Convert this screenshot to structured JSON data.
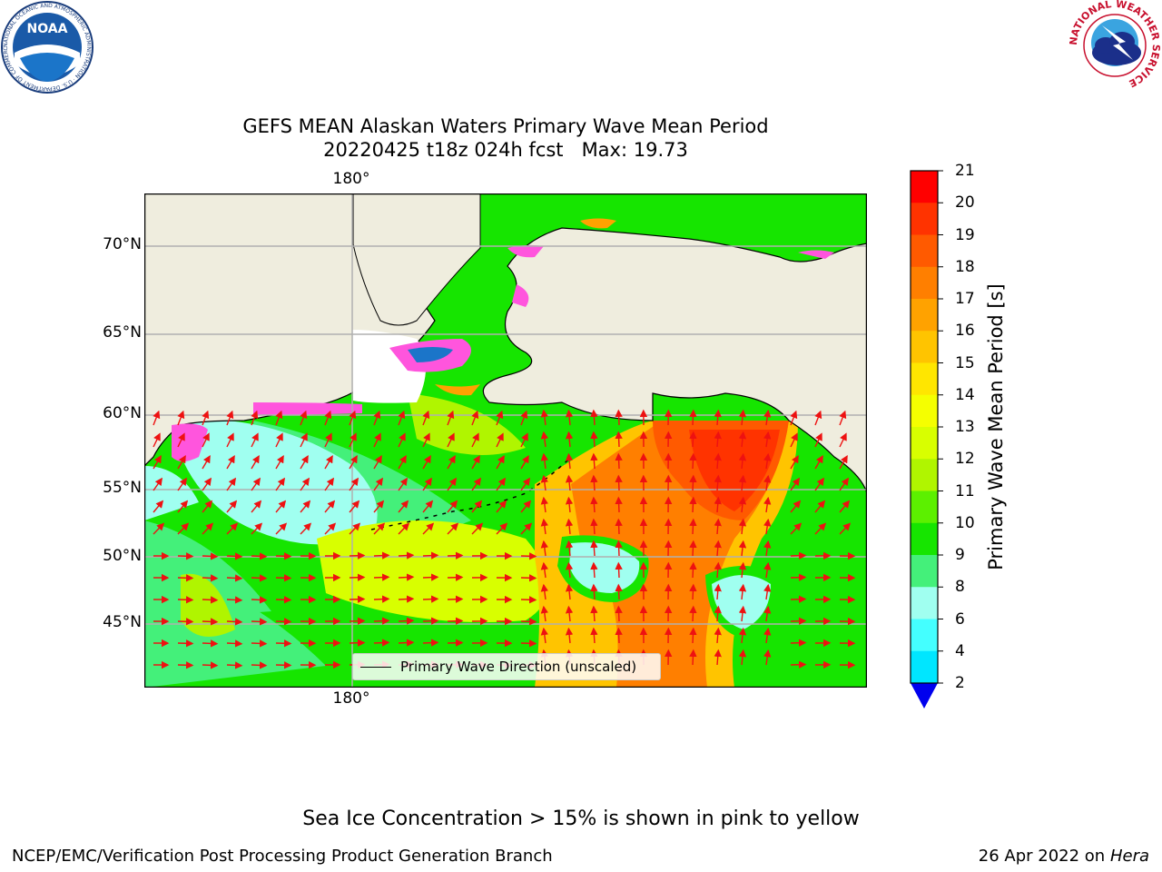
{
  "header": {
    "noaa_logo_text": "NOAA",
    "noaa_ring_text": "NATIONAL OCEANIC AND ATMOSPHERIC ADMINISTRATION · U.S. DEPARTMENT OF COMMERCE",
    "nws_ring_text": "NATIONAL WEATHER SERVICE"
  },
  "title": {
    "line1": "GEFS MEAN Alaskan Waters Primary Wave Mean Period",
    "line2": "20220425 t18z 024h fcst   Max: 19.73"
  },
  "map": {
    "lon_labels": {
      "top": "180°",
      "bottom": "180°"
    },
    "lat_labels": [
      "70°N",
      "65°N",
      "60°N",
      "55°N",
      "50°N",
      "45°N"
    ],
    "legend": {
      "label": "Primary Wave Direction (unscaled)"
    },
    "colors": {
      "land": "#efedde",
      "coast": "#000000",
      "grid": "#b0b0b0",
      "arrow": "#ee1111",
      "ice_pink": "#ff55dd",
      "ice_yellow": "#ffee00"
    }
  },
  "colorbar": {
    "label": "Primary Wave Mean Period [s]",
    "ticks": [
      "21",
      "20",
      "19",
      "18",
      "17",
      "16",
      "15",
      "14",
      "13",
      "12",
      "11",
      "10",
      "9",
      "8",
      "6",
      "4",
      "2"
    ],
    "colors": [
      "#ff0000",
      "#ff3300",
      "#ff5a00",
      "#ff7f00",
      "#ffa200",
      "#ffc400",
      "#ffe600",
      "#f5ff00",
      "#d8ff00",
      "#b0f500",
      "#5cf000",
      "#16e500",
      "#44f07a",
      "#a0fff0",
      "#44ffff",
      "#00e6ff",
      "#0077ff"
    ],
    "under_color": "#0000ee"
  },
  "footer": {
    "ice_note": "Sea Ice Concentration > 15% is shown in pink to yellow",
    "branch": "NCEP/EMC/Verification Post Processing Product Generation Branch",
    "date": "26 Apr 2022 on ",
    "host": "Hera"
  }
}
